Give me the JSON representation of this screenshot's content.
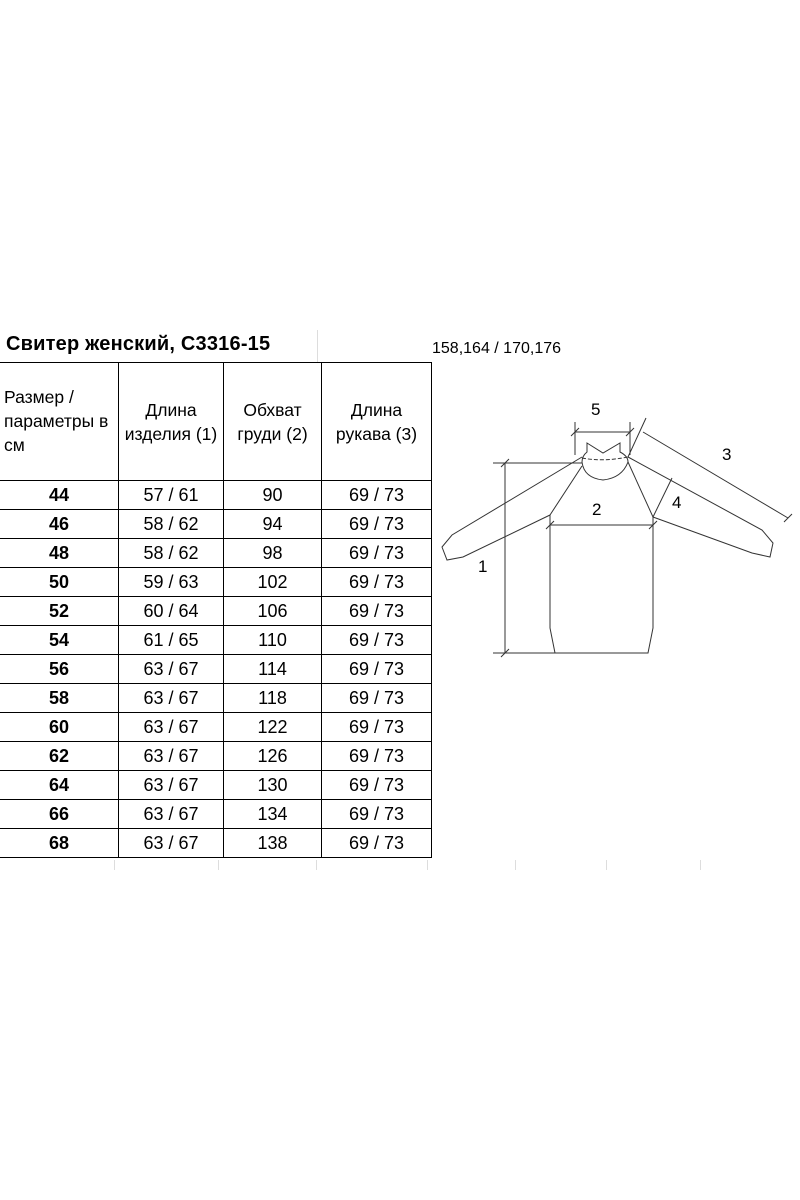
{
  "title": "Свитер женский, С3316-15",
  "heights": "158,164 / 170,176",
  "table": {
    "headers": [
      "Размер / параметры в см",
      "Длина изделия (1)",
      "Обхват груди (2)",
      "Длина рукава (3)"
    ],
    "rows": [
      [
        "44",
        "57 / 61",
        "90",
        "69 / 73"
      ],
      [
        "46",
        "58 / 62",
        "94",
        "69 / 73"
      ],
      [
        "48",
        "58 / 62",
        "98",
        "69 / 73"
      ],
      [
        "50",
        "59 / 63",
        "102",
        "69 / 73"
      ],
      [
        "52",
        "60 / 64",
        "106",
        "69 / 73"
      ],
      [
        "54",
        "61 / 65",
        "110",
        "69 / 73"
      ],
      [
        "56",
        "63 / 67",
        "114",
        "69 / 73"
      ],
      [
        "58",
        "63 / 67",
        "118",
        "69 / 73"
      ],
      [
        "60",
        "63 / 67",
        "122",
        "69 / 73"
      ],
      [
        "62",
        "63 / 67",
        "126",
        "69 / 73"
      ],
      [
        "64",
        "63 / 67",
        "130",
        "69 / 73"
      ],
      [
        "66",
        "63 / 67",
        "134",
        "69 / 73"
      ],
      [
        "68",
        "63 / 67",
        "138",
        "69 / 73"
      ]
    ]
  },
  "diagram": {
    "labels": [
      "1",
      "2",
      "3",
      "4",
      "5"
    ]
  }
}
